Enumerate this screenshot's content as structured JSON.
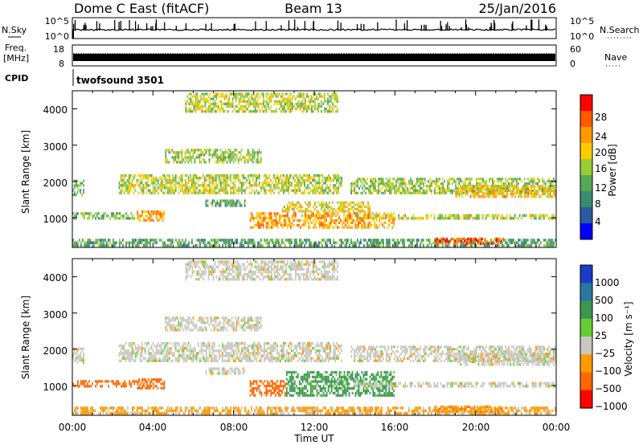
{
  "header": {
    "station": "Dome C East (fitACF)",
    "beam": "Beam 13",
    "date": "25/Jan/2016"
  },
  "time_axis": {
    "label": "Time UT",
    "ticks": [
      "00:00",
      "04:00",
      "08:00",
      "12:00",
      "16:00",
      "20:00",
      "00:00"
    ]
  },
  "strip_nsky": {
    "left_label": "N.Sky",
    "right_label": "N.Search",
    "left_ticks": [
      "10^5",
      "10^0"
    ],
    "right_ticks": [
      "10^5",
      "10^0"
    ]
  },
  "strip_freq": {
    "left_label": "Freq.",
    "left_unit": "[MHz]",
    "right_label": "Nave",
    "left_ticks": [
      "18",
      "8"
    ],
    "right_ticks": [
      "60",
      "0"
    ]
  },
  "strip_cpid": {
    "label": "CPID",
    "value": "twofsound 3501"
  },
  "power_panel": {
    "ylabel": "Slant Range [km]",
    "yticks": [
      "4000",
      "3000",
      "2000",
      "1000"
    ],
    "colorbar_label": "Power [dB]",
    "colorbar_ticks": [
      "28",
      "24",
      "20",
      "16",
      "12",
      "8",
      "4"
    ],
    "colorbar_colors": [
      "#ff0000",
      "#ff5a00",
      "#ff9a00",
      "#ffcc00",
      "#9acc33",
      "#55aa55",
      "#3a8c6e",
      "#2a5aa0",
      "#0000ff"
    ]
  },
  "velocity_panel": {
    "ylabel": "Slant Range [km]",
    "yticks": [
      "4000",
      "3000",
      "2000",
      "1000"
    ],
    "colorbar_label": "Velocity [m s⁻¹]",
    "colorbar_ticks": [
      "1000",
      "500",
      "100",
      "25",
      "−25",
      "−100",
      "−500",
      "−1000"
    ],
    "colorbar_colors": [
      "#1a3cc8",
      "#2a78a0",
      "#3c9650",
      "#66cc33",
      "#c8c8c0",
      "#ff9900",
      "#ff6600",
      "#ff0000"
    ]
  },
  "chart_data": [
    {
      "type": "heatmap",
      "title": "Power",
      "xlabel": "Time UT",
      "ylabel": "Slant Range [km]",
      "xlim": [
        0,
        24
      ],
      "ylim": [
        180,
        4500
      ],
      "colorbar_label": "Power [dB]",
      "colorbar_range": [
        0,
        30
      ],
      "echo_regions": [
        {
          "t": [
            0.0,
            24.0
          ],
          "r": [
            200,
            420
          ],
          "value": 10
        },
        {
          "t": [
            0.0,
            0.6
          ],
          "r": [
            1600,
            2050
          ],
          "value": 12
        },
        {
          "t": [
            0.0,
            3.2
          ],
          "r": [
            950,
            1150
          ],
          "value": 12
        },
        {
          "t": [
            3.2,
            4.6
          ],
          "r": [
            900,
            1200
          ],
          "value": 22
        },
        {
          "t": [
            6.6,
            8.6
          ],
          "r": [
            1300,
            1500
          ],
          "value": 10
        },
        {
          "t": [
            2.3,
            13.4
          ],
          "r": [
            1650,
            2200
          ],
          "value": 16
        },
        {
          "t": [
            4.6,
            9.4
          ],
          "r": [
            2500,
            2900
          ],
          "value": 14
        },
        {
          "t": [
            5.6,
            13.2
          ],
          "r": [
            3900,
            4450
          ],
          "value": 16
        },
        {
          "t": [
            8.8,
            16.0
          ],
          "r": [
            700,
            1150
          ],
          "value": 22
        },
        {
          "t": [
            10.4,
            14.8
          ],
          "r": [
            1150,
            1450
          ],
          "value": 18
        },
        {
          "t": [
            13.8,
            24.0
          ],
          "r": [
            1650,
            2100
          ],
          "value": 14
        },
        {
          "t": [
            14.0,
            24.0
          ],
          "r": [
            950,
            1100
          ],
          "value": 16
        },
        {
          "t": [
            18.0,
            21.4
          ],
          "r": [
            250,
            450
          ],
          "value": 26
        },
        {
          "t": [
            19.0,
            24.0
          ],
          "r": [
            1550,
            1900
          ],
          "value": 20
        }
      ]
    },
    {
      "type": "heatmap",
      "title": "Velocity",
      "xlabel": "Time UT",
      "ylabel": "Slant Range [km]",
      "xlim": [
        0,
        24
      ],
      "ylim": [
        180,
        4500
      ],
      "colorbar_label": "Velocity [m s⁻¹]",
      "colorbar_range": [
        -1000,
        1000
      ],
      "echo_regions": [
        {
          "t": [
            0.0,
            24.0
          ],
          "r": [
            200,
            420
          ],
          "value": -40
        },
        {
          "t": [
            0.0,
            0.6
          ],
          "r": [
            1600,
            2050
          ],
          "value": 0
        },
        {
          "t": [
            0.0,
            3.2
          ],
          "r": [
            950,
            1150
          ],
          "value": -150
        },
        {
          "t": [
            3.2,
            4.6
          ],
          "r": [
            900,
            1200
          ],
          "value": -300
        },
        {
          "t": [
            6.6,
            8.6
          ],
          "r": [
            1300,
            1500
          ],
          "value": 0
        },
        {
          "t": [
            2.3,
            13.4
          ],
          "r": [
            1650,
            2200
          ],
          "value": 0
        },
        {
          "t": [
            4.6,
            9.4
          ],
          "r": [
            2500,
            2900
          ],
          "value": 0
        },
        {
          "t": [
            5.6,
            13.2
          ],
          "r": [
            3900,
            4450
          ],
          "value": 0
        },
        {
          "t": [
            8.8,
            10.6
          ],
          "r": [
            700,
            1150
          ],
          "value": -200
        },
        {
          "t": [
            10.6,
            16.0
          ],
          "r": [
            700,
            1400
          ],
          "value": 150
        },
        {
          "t": [
            13.8,
            24.0
          ],
          "r": [
            1650,
            2100
          ],
          "value": 0
        },
        {
          "t": [
            14.0,
            24.0
          ],
          "r": [
            950,
            1100
          ],
          "value": 0
        },
        {
          "t": [
            18.0,
            21.4
          ],
          "r": [
            250,
            450
          ],
          "value": -80
        },
        {
          "t": [
            19.0,
            24.0
          ],
          "r": [
            1550,
            1900
          ],
          "value": 0
        }
      ]
    }
  ]
}
